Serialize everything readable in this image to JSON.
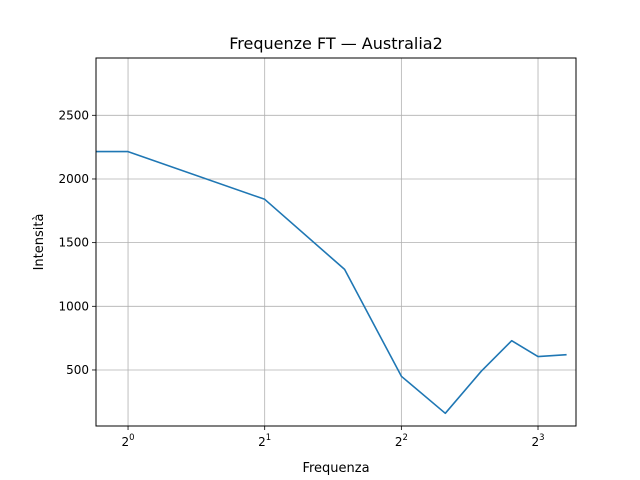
{
  "chart_data": {
    "type": "line",
    "title": "Frequenze FT — Australia2",
    "xlabel": "Frequenza",
    "ylabel": "Intensità",
    "x_scale": "log2",
    "xlim": [
      0.85,
      9.7
    ],
    "ylim": [
      60,
      2950
    ],
    "grid": true,
    "x_ticks": [
      {
        "value": 1,
        "base": "2",
        "exp": "0"
      },
      {
        "value": 2,
        "base": "2",
        "exp": "1"
      },
      {
        "value": 4,
        "base": "2",
        "exp": "2"
      },
      {
        "value": 8,
        "base": "2",
        "exp": "3"
      }
    ],
    "y_ticks": [
      {
        "value": 500,
        "label": "500"
      },
      {
        "value": 1000,
        "label": "1000"
      },
      {
        "value": 1500,
        "label": "1500"
      },
      {
        "value": 2000,
        "label": "2000"
      },
      {
        "value": 2500,
        "label": "2500"
      }
    ],
    "series": [
      {
        "color": "#1f77b4",
        "x": [
          0.85,
          1.0,
          2.0,
          3.0,
          4.0,
          5.0,
          6.0,
          7.0,
          8.0,
          9.25
        ],
        "y": [
          2215,
          2215,
          1840,
          1290,
          450,
          160,
          490,
          730,
          605,
          620
        ]
      }
    ]
  }
}
